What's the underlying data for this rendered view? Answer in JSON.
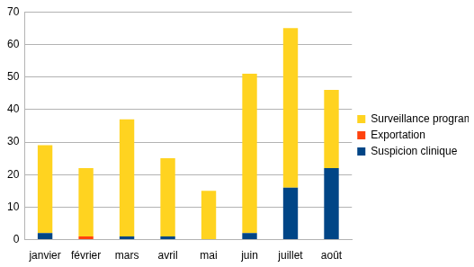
{
  "chart_data": {
    "type": "bar",
    "stacked": true,
    "categories": [
      "janvier",
      "février",
      "mars",
      "avril",
      "mai",
      "juin",
      "juillet",
      "août"
    ],
    "series": [
      {
        "name": "Suspicion clinique",
        "color": "#004586",
        "values": [
          2,
          0,
          1,
          1,
          0,
          2,
          16,
          22
        ]
      },
      {
        "name": "Exportation",
        "color": "#ff420e",
        "values": [
          0,
          1,
          0,
          0,
          0,
          0,
          0,
          0
        ]
      },
      {
        "name": "Surveillance programmée",
        "color": "#ffd320",
        "values": [
          27,
          21,
          36,
          24,
          15,
          49,
          49,
          24
        ]
      }
    ],
    "ylim": [
      0,
      70
    ],
    "yticks": [
      0,
      10,
      20,
      30,
      40,
      50,
      60,
      70
    ],
    "grid": true,
    "legend": "right"
  }
}
